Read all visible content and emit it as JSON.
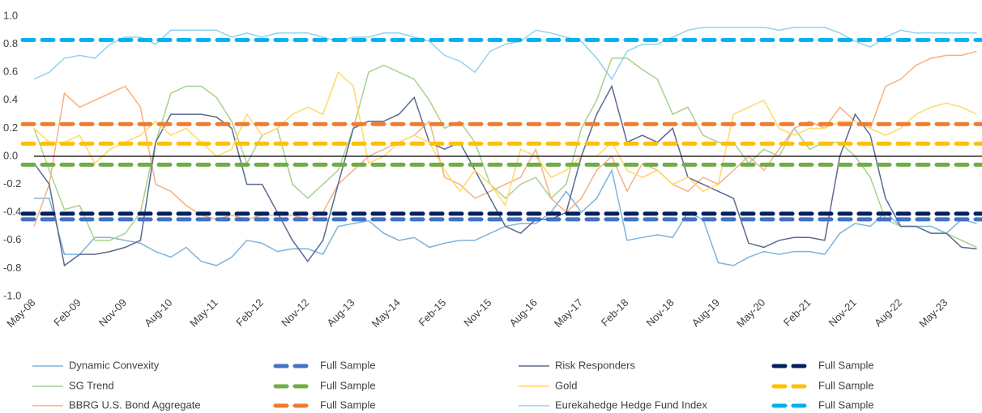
{
  "chart_data": {
    "type": "line",
    "categories": [
      "May-08",
      null,
      null,
      "Feb-09",
      null,
      null,
      "Nov-09",
      null,
      null,
      "Aug-10",
      null,
      null,
      "May-11",
      null,
      null,
      "Feb-12",
      null,
      null,
      "Nov-12",
      null,
      null,
      "Aug-13",
      null,
      null,
      "May-14",
      null,
      null,
      "Feb-15",
      null,
      null,
      "Nov-15",
      null,
      null,
      "Aug-16",
      null,
      null,
      "May-17",
      null,
      null,
      "Feb-18",
      null,
      null,
      "Nov-18",
      null,
      null,
      "Aug-19",
      null,
      null,
      "May-20",
      null,
      null,
      "Feb-21",
      null,
      null,
      "Nov-21",
      null,
      null,
      "Aug-22",
      null,
      null,
      "May-23",
      null,
      null
    ],
    "series": [
      {
        "name": "Dynamic Convexity",
        "color": "#7eb3da",
        "values": [
          -0.3,
          -0.3,
          -0.7,
          -0.7,
          -0.58,
          -0.58,
          -0.6,
          -0.62,
          -0.68,
          -0.72,
          -0.65,
          -0.75,
          -0.78,
          -0.72,
          -0.6,
          -0.62,
          -0.68,
          -0.66,
          -0.66,
          -0.7,
          -0.5,
          -0.48,
          -0.46,
          -0.55,
          -0.6,
          -0.58,
          -0.65,
          -0.62,
          -0.6,
          -0.6,
          -0.55,
          -0.5,
          -0.48,
          -0.48,
          -0.4,
          -0.25,
          -0.4,
          -0.3,
          -0.1,
          -0.6,
          -0.58,
          -0.56,
          -0.58,
          -0.4,
          -0.45,
          -0.76,
          -0.78,
          -0.72,
          -0.68,
          -0.7,
          -0.68,
          -0.68,
          -0.7,
          -0.55,
          -0.48,
          -0.5,
          -0.4,
          -0.5,
          -0.5,
          -0.5,
          -0.55,
          -0.45,
          -0.48
        ]
      },
      {
        "name": "SG Trend",
        "color": "#a9d18e",
        "values": [
          0.2,
          -0.1,
          -0.38,
          -0.35,
          -0.6,
          -0.6,
          -0.55,
          -0.4,
          0.1,
          0.45,
          0.5,
          0.5,
          0.42,
          0.25,
          -0.05,
          0.15,
          0.2,
          -0.2,
          -0.3,
          -0.2,
          -0.1,
          0.2,
          0.6,
          0.65,
          0.6,
          0.55,
          0.4,
          0.2,
          0.25,
          0.1,
          -0.2,
          -0.3,
          -0.2,
          -0.15,
          -0.3,
          -0.2,
          0.2,
          0.4,
          0.7,
          0.7,
          0.62,
          0.55,
          0.3,
          0.35,
          0.15,
          0.1,
          0.1,
          -0.05,
          0.05,
          0.0,
          0.2,
          0.05,
          0.1,
          0.1,
          0.0,
          -0.15,
          -0.45,
          -0.5,
          -0.5,
          -0.55,
          -0.55,
          -0.6,
          -0.65
        ]
      },
      {
        "name": "BBRG U.S. Bond Aggregate",
        "color": "#f4b183",
        "values": [
          -0.5,
          -0.2,
          0.45,
          0.35,
          0.4,
          0.45,
          0.5,
          0.35,
          -0.2,
          -0.25,
          -0.35,
          -0.42,
          -0.45,
          -0.42,
          -0.45,
          -0.42,
          -0.42,
          -0.42,
          -0.45,
          -0.4,
          -0.2,
          -0.1,
          0.0,
          0.05,
          0.1,
          0.15,
          0.25,
          -0.15,
          -0.2,
          -0.3,
          -0.25,
          -0.2,
          -0.15,
          0.05,
          -0.3,
          -0.4,
          -0.3,
          -0.1,
          0.0,
          -0.25,
          -0.05,
          -0.1,
          -0.2,
          -0.25,
          -0.15,
          -0.2,
          -0.1,
          0.0,
          -0.1,
          0.05,
          0.2,
          0.25,
          0.2,
          0.35,
          0.25,
          0.2,
          0.5,
          0.55,
          0.65,
          0.7,
          0.72,
          0.72,
          0.75
        ]
      },
      {
        "name": "Risk Responders",
        "color": "#5b6a8f",
        "values": [
          -0.05,
          -0.2,
          -0.78,
          -0.7,
          -0.7,
          -0.68,
          -0.65,
          -0.6,
          0.1,
          0.3,
          0.3,
          0.3,
          0.28,
          0.2,
          -0.2,
          -0.2,
          -0.4,
          -0.6,
          -0.75,
          -0.6,
          -0.2,
          0.2,
          0.25,
          0.25,
          0.3,
          0.42,
          0.1,
          0.05,
          0.1,
          -0.1,
          -0.3,
          -0.5,
          -0.55,
          -0.45,
          -0.45,
          -0.4,
          0.0,
          0.3,
          0.5,
          0.1,
          0.15,
          0.1,
          0.2,
          -0.15,
          -0.2,
          -0.25,
          -0.3,
          -0.62,
          -0.65,
          -0.6,
          -0.58,
          -0.58,
          -0.6,
          0.0,
          0.3,
          0.15,
          -0.3,
          -0.5,
          -0.5,
          -0.55,
          -0.55,
          -0.65,
          -0.66
        ]
      },
      {
        "name": "Gold",
        "color": "#ffd966",
        "values": [
          0.2,
          0.1,
          0.1,
          0.15,
          -0.05,
          0.05,
          0.1,
          0.15,
          0.25,
          0.15,
          0.2,
          0.1,
          0.0,
          0.05,
          0.3,
          0.15,
          0.2,
          0.3,
          0.35,
          0.3,
          0.6,
          0.5,
          -0.05,
          0.0,
          0.1,
          0.15,
          0.1,
          -0.1,
          -0.25,
          -0.1,
          -0.2,
          -0.35,
          0.05,
          0.0,
          -0.15,
          -0.1,
          0.0,
          0.0,
          0.1,
          -0.1,
          -0.15,
          -0.1,
          -0.2,
          -0.15,
          -0.25,
          -0.2,
          0.3,
          0.35,
          0.4,
          0.2,
          0.15,
          0.2,
          0.2,
          0.25,
          0.25,
          0.2,
          0.15,
          0.2,
          0.3,
          0.35,
          0.38,
          0.35,
          0.3
        ]
      },
      {
        "name": "Eurekahedge Hedge Fund Index",
        "color": "#8fd3f0",
        "values": [
          0.55,
          0.6,
          0.7,
          0.72,
          0.7,
          0.8,
          0.85,
          0.85,
          0.8,
          0.9,
          0.9,
          0.9,
          0.9,
          0.85,
          0.88,
          0.85,
          0.88,
          0.88,
          0.88,
          0.85,
          0.82,
          0.85,
          0.85,
          0.88,
          0.88,
          0.85,
          0.82,
          0.72,
          0.68,
          0.6,
          0.75,
          0.8,
          0.82,
          0.9,
          0.88,
          0.85,
          0.82,
          0.7,
          0.55,
          0.75,
          0.8,
          0.8,
          0.85,
          0.9,
          0.92,
          0.92,
          0.92,
          0.92,
          0.92,
          0.9,
          0.92,
          0.92,
          0.92,
          0.88,
          0.82,
          0.78,
          0.85,
          0.9,
          0.88,
          0.88,
          0.88,
          0.88,
          0.88
        ]
      }
    ],
    "reference_lines": [
      {
        "name": "Full Sample",
        "color": "#4472c4",
        "value": -0.45
      },
      {
        "name": "Full Sample",
        "color": "#70ad47",
        "value": -0.06
      },
      {
        "name": "Full Sample",
        "color": "#ed7d31",
        "value": 0.23
      },
      {
        "name": "Full Sample",
        "color": "#002060",
        "value": -0.41
      },
      {
        "name": "Full Sample",
        "color": "#ffc000",
        "value": 0.09
      },
      {
        "name": "Full Sample",
        "color": "#00b0f0",
        "value": 0.83
      }
    ],
    "ylim": [
      -1.0,
      1.0
    ],
    "yticks": [
      {
        "value": 1.0,
        "label": "1.0"
      },
      {
        "value": 0.8,
        "label": "0.8"
      },
      {
        "value": 0.6,
        "label": "0.6"
      },
      {
        "value": 0.4,
        "label": "0.4"
      },
      {
        "value": 0.2,
        "label": "0.2"
      },
      {
        "value": 0.0,
        "label": "0.0"
      },
      {
        "value": -0.2,
        "label": "-0.2"
      },
      {
        "value": -0.4,
        "label": "-0.4"
      },
      {
        "value": -0.6,
        "label": "-0.6"
      },
      {
        "value": -0.8,
        "label": "-0.8"
      },
      {
        "value": -1.0,
        "label": "-1.0"
      }
    ]
  }
}
